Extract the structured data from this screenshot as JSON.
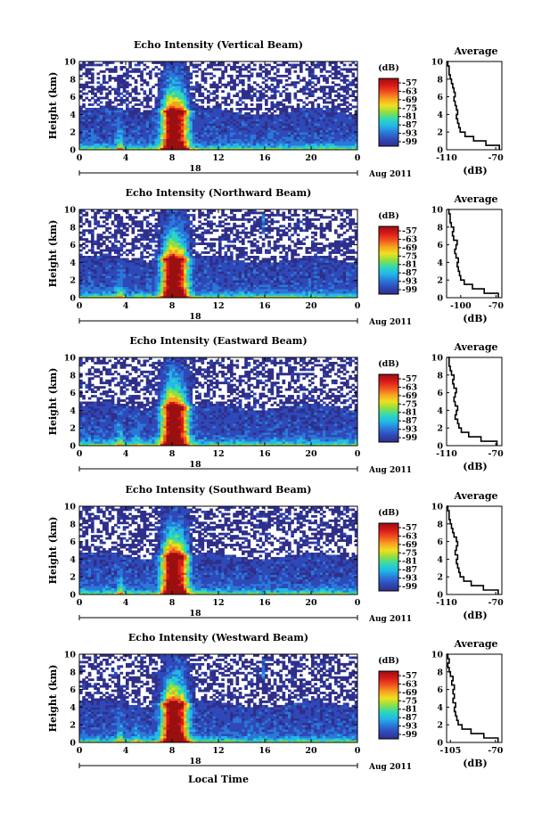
{
  "figure": {
    "xaxis_title": "Local Time",
    "date_label": "Aug 2011",
    "day_tick_label": "18",
    "colorbar_unit": "(dB)",
    "avg_title": "Average",
    "avg_xunit": "(dB)",
    "height_label": "Height (km)"
  },
  "colors": {
    "scale": [
      "#2f2f8a",
      "#2f49b8",
      "#2a78d8",
      "#22b8e8",
      "#30d8b8",
      "#8ee040",
      "#f0e020",
      "#f8a020",
      "#f05020",
      "#d81818",
      "#9a1010"
    ]
  },
  "chart_data": [
    {
      "type": "heatmap",
      "title": "Echo Intensity (Vertical Beam)",
      "beam": "vertical",
      "xlabel": "",
      "ylabel": "Height (km)",
      "xlim": [
        0,
        24
      ],
      "ylim": [
        0,
        10
      ],
      "xticks": [
        "0",
        "4",
        "8",
        "12",
        "16",
        "20",
        "0"
      ],
      "yticks": [
        "0",
        "2",
        "4",
        "6",
        "8",
        "10"
      ],
      "colorbar": {
        "label": "(dB)",
        "ticks": [
          "-57",
          "-63",
          "-69",
          "-75",
          "-81",
          "-87",
          "-93",
          "-99"
        ]
      },
      "average_profile": {
        "title": "Average",
        "xlabel": "(dB)",
        "xlim": [
          -110,
          -65
        ],
        "xticks": [
          "-110",
          "-70"
        ],
        "height": [
          0,
          0.5,
          1,
          1.5,
          2,
          2.5,
          3,
          3.5,
          4,
          4.5,
          5,
          5.5,
          6,
          6.5,
          7,
          7.5,
          8,
          8.5,
          9,
          9.5,
          10
        ],
        "db": [
          -67,
          -78,
          -88,
          -95,
          -99,
          -100,
          -101,
          -102,
          -101,
          -102,
          -103,
          -104,
          -103,
          -104,
          -105,
          -106,
          -107,
          -108,
          -108,
          -109,
          -110
        ]
      }
    },
    {
      "type": "heatmap",
      "title": "Echo Intensity (Northward Beam)",
      "beam": "northward",
      "xlabel": "",
      "ylabel": "Height (km)",
      "xlim": [
        0,
        24
      ],
      "ylim": [
        0,
        10
      ],
      "xticks": [
        "0",
        "4",
        "8",
        "12",
        "16",
        "20",
        "0"
      ],
      "yticks": [
        "0",
        "2",
        "4",
        "6",
        "8",
        "10"
      ],
      "colorbar": {
        "label": "(dB)",
        "ticks": [
          "-57",
          "-63",
          "-69",
          "-75",
          "-81",
          "-87",
          "-93",
          "-99"
        ]
      },
      "average_profile": {
        "title": "Average",
        "xlabel": "(dB)",
        "xlim": [
          -112,
          -65
        ],
        "xticks": [
          "-100",
          "-70"
        ],
        "height": [
          0,
          0.5,
          1,
          1.5,
          2,
          2.5,
          3,
          3.5,
          4,
          4.5,
          5,
          5.5,
          6,
          6.5,
          7,
          7.5,
          8,
          8.5,
          9,
          9.5,
          10
        ],
        "db": [
          -68,
          -80,
          -90,
          -97,
          -100,
          -101,
          -102,
          -103,
          -102,
          -104,
          -105,
          -104,
          -103,
          -106,
          -107,
          -106,
          -108,
          -109,
          -109,
          -110,
          -111
        ]
      }
    },
    {
      "type": "heatmap",
      "title": "Echo Intensity (Eastward Beam)",
      "beam": "eastward",
      "xlabel": "",
      "ylabel": "Height (km)",
      "xlim": [
        0,
        24
      ],
      "ylim": [
        0,
        10
      ],
      "xticks": [
        "0",
        "4",
        "8",
        "12",
        "16",
        "20",
        "0"
      ],
      "yticks": [
        "0",
        "2",
        "4",
        "6",
        "8",
        "10"
      ],
      "colorbar": {
        "label": "(dB)",
        "ticks": [
          "-57",
          "-63",
          "-69",
          "-75",
          "-81",
          "-87",
          "-93",
          "-99"
        ]
      },
      "average_profile": {
        "title": "Average",
        "xlabel": "(dB)",
        "xlim": [
          -110,
          -65
        ],
        "xticks": [
          "-110",
          "-70"
        ],
        "height": [
          0,
          0.5,
          1,
          1.5,
          2,
          2.5,
          3,
          3.5,
          4,
          4.5,
          5,
          5.5,
          6,
          6.5,
          7,
          7.5,
          8,
          8.5,
          9,
          9.5,
          10
        ],
        "db": [
          -69,
          -82,
          -92,
          -98,
          -100,
          -101,
          -103,
          -102,
          -101,
          -103,
          -104,
          -103,
          -102,
          -104,
          -105,
          -104,
          -106,
          -107,
          -108,
          -108,
          -109
        ]
      }
    },
    {
      "type": "heatmap",
      "title": "Echo Intensity (Southward Beam)",
      "beam": "southward",
      "xlabel": "",
      "ylabel": "Height (km)",
      "xlim": [
        0,
        24
      ],
      "ylim": [
        0,
        10
      ],
      "xticks": [
        "0",
        "4",
        "8",
        "12",
        "16",
        "20",
        "0"
      ],
      "yticks": [
        "0",
        "2",
        "4",
        "6",
        "8",
        "10"
      ],
      "colorbar": {
        "label": "(dB)",
        "ticks": [
          "-57",
          "-63",
          "-69",
          "-75",
          "-81",
          "-87",
          "-93",
          "-99"
        ]
      },
      "average_profile": {
        "title": "Average",
        "xlabel": "(dB)",
        "xlim": [
          -110,
          -65
        ],
        "xticks": [
          "-110",
          "-70"
        ],
        "height": [
          0,
          0.5,
          1,
          1.5,
          2,
          2.5,
          3,
          3.5,
          4,
          4.5,
          5,
          5.5,
          6,
          6.5,
          7,
          7.5,
          8,
          8.5,
          9,
          9.5,
          10
        ],
        "db": [
          -68,
          -80,
          -90,
          -96,
          -99,
          -100,
          -101,
          -102,
          -101,
          -103,
          -102,
          -101,
          -102,
          -104,
          -105,
          -106,
          -107,
          -108,
          -108,
          -109,
          -110
        ]
      }
    },
    {
      "type": "heatmap",
      "title": "Echo Intensity (Westward Beam)",
      "beam": "westward",
      "xlabel": "Local Time",
      "ylabel": "Height (km)",
      "xlim": [
        0,
        24
      ],
      "ylim": [
        0,
        10
      ],
      "xticks": [
        "0",
        "4",
        "8",
        "12",
        "16",
        "20",
        "0"
      ],
      "yticks": [
        "0",
        "2",
        "4",
        "6",
        "8",
        "10"
      ],
      "colorbar": {
        "label": "(dB)",
        "ticks": [
          "-57",
          "-63",
          "-69",
          "-75",
          "-81",
          "-87",
          "-93",
          "-99"
        ]
      },
      "average_profile": {
        "title": "Average",
        "xlabel": "(dB)",
        "xlim": [
          -108,
          -65
        ],
        "xticks": [
          "-105",
          "-70"
        ],
        "height": [
          0,
          0.5,
          1,
          1.5,
          2,
          2.5,
          3,
          3.5,
          4,
          4.5,
          5,
          5.5,
          6,
          6.5,
          7,
          7.5,
          8,
          8.5,
          9,
          9.5,
          10
        ],
        "db": [
          -68,
          -79,
          -89,
          -96,
          -99,
          -100,
          -101,
          -102,
          -101,
          -103,
          -102,
          -103,
          -102,
          -104,
          -103,
          -105,
          -106,
          -107,
          -106,
          -107,
          -108
        ]
      }
    }
  ]
}
